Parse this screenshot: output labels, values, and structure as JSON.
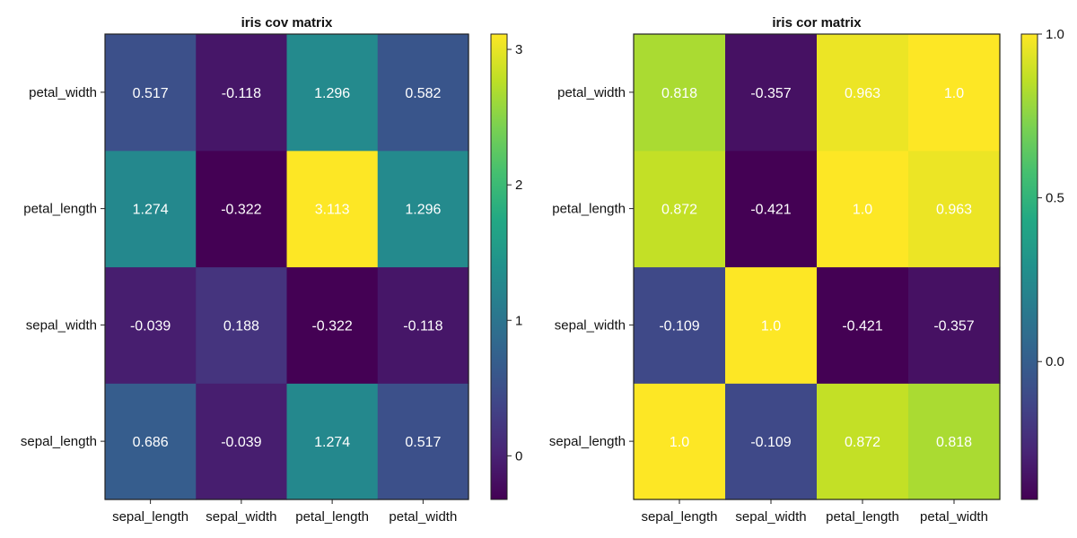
{
  "chart_data": [
    {
      "type": "heatmap",
      "title": "iris cov matrix",
      "x_categories": [
        "sepal_length",
        "sepal_width",
        "petal_length",
        "petal_width"
      ],
      "y_categories": [
        "sepal_length",
        "sepal_width",
        "petal_length",
        "petal_width"
      ],
      "matrix": [
        [
          0.686,
          -0.039,
          1.274,
          0.517
        ],
        [
          -0.039,
          0.188,
          -0.322,
          -0.118
        ],
        [
          1.274,
          -0.322,
          3.113,
          1.296
        ],
        [
          0.517,
          -0.118,
          1.296,
          0.582
        ]
      ],
      "cell_labels": [
        [
          "0.686",
          "-0.039",
          "1.274",
          "0.517"
        ],
        [
          "-0.039",
          "0.188",
          "-0.322",
          "-0.118"
        ],
        [
          "1.274",
          "-0.322",
          "3.113",
          "1.296"
        ],
        [
          "0.517",
          "-0.118",
          "1.296",
          "0.582"
        ]
      ],
      "y_order": "sepal_length at bottom",
      "colormap": "viridis",
      "colorbar": {
        "range": [
          -0.322,
          3.113
        ],
        "ticks": [
          0,
          1,
          2,
          3
        ],
        "tick_labels": [
          "0",
          "1",
          "2",
          "3"
        ]
      },
      "grid": false,
      "legend": "colorbar right"
    },
    {
      "type": "heatmap",
      "title": "iris cor matrix",
      "x_categories": [
        "sepal_length",
        "sepal_width",
        "petal_length",
        "petal_width"
      ],
      "y_categories": [
        "sepal_length",
        "sepal_width",
        "petal_length",
        "petal_width"
      ],
      "matrix": [
        [
          1.0,
          -0.109,
          0.872,
          0.818
        ],
        [
          -0.109,
          1.0,
          -0.421,
          -0.357
        ],
        [
          0.872,
          -0.421,
          1.0,
          0.963
        ],
        [
          0.818,
          -0.357,
          0.963,
          1.0
        ]
      ],
      "cell_labels": [
        [
          "1.0",
          "-0.109",
          "0.872",
          "0.818"
        ],
        [
          "-0.109",
          "1.0",
          "-0.421",
          "-0.357"
        ],
        [
          "0.872",
          "-0.421",
          "1.0",
          "0.963"
        ],
        [
          "0.818",
          "-0.357",
          "0.963",
          "1.0"
        ]
      ],
      "y_order": "sepal_length at bottom",
      "colormap": "viridis",
      "colorbar": {
        "range": [
          -0.421,
          1.0
        ],
        "ticks": [
          0,
          0.5,
          1
        ],
        "tick_labels": [
          "0.0",
          "0.5",
          "1.0"
        ]
      },
      "grid": false,
      "legend": "colorbar right"
    }
  ]
}
